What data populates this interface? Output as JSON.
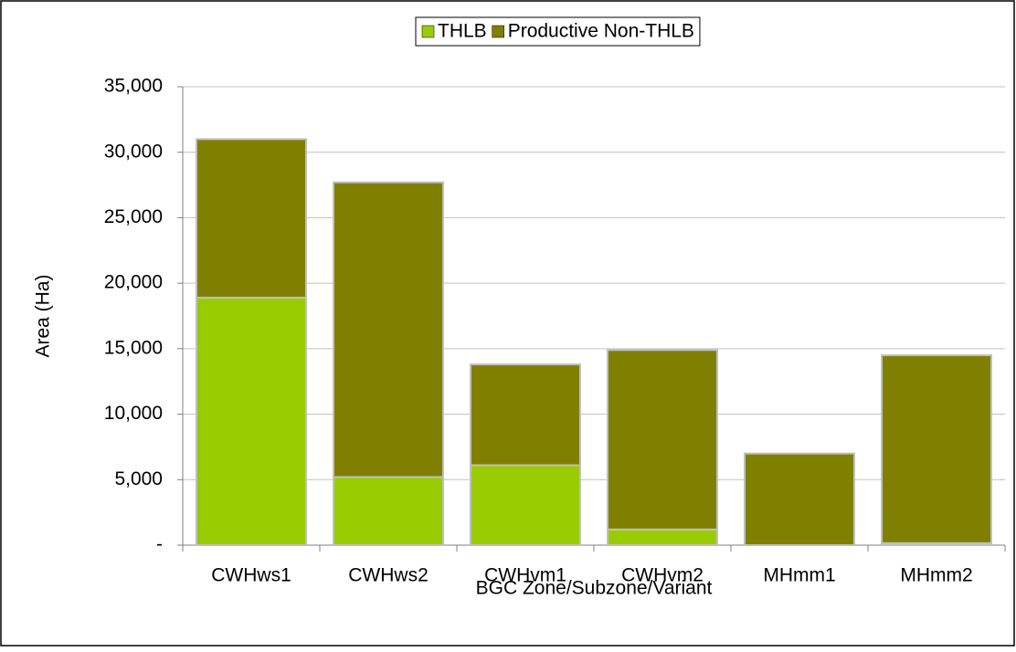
{
  "chart_data": {
    "type": "stacked_bar",
    "x_label": "BGC Zone/Subzone/Variant",
    "y_label": "Area (Ha)",
    "categories": [
      "CWHws1",
      "CWHws2",
      "CWHvm1",
      "CWHvm2",
      "MHmm1",
      "MHmm2"
    ],
    "series": [
      {
        "name": "THLB",
        "color": "#99cc00",
        "values": [
          18900,
          5200,
          6100,
          1200,
          0,
          150
        ]
      },
      {
        "name": "Productive Non-THLB",
        "color": "#808000",
        "values": [
          12100,
          22500,
          7700,
          13700,
          7000,
          14350
        ]
      }
    ],
    "ylim": [
      0,
      35000
    ],
    "yticks": [
      {
        "value": 0,
        "label": "-"
      },
      {
        "value": 5000,
        "label": "5,000"
      },
      {
        "value": 10000,
        "label": "10,000"
      },
      {
        "value": 15000,
        "label": "15,000"
      },
      {
        "value": 20000,
        "label": "20,000"
      },
      {
        "value": 25000,
        "label": "25,000"
      },
      {
        "value": 30000,
        "label": "30,000"
      },
      {
        "value": 35000,
        "label": "35,000"
      }
    ],
    "grid": true,
    "legend": "top"
  }
}
